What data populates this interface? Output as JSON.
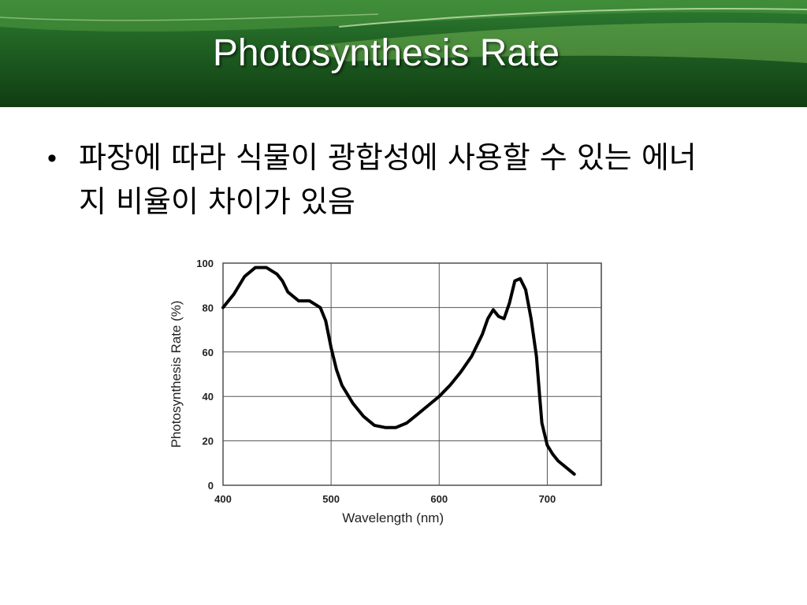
{
  "title": "Photosynthesis Rate",
  "bullet": "파장에 따라 식물이 광합성에 사용할 수 있는 에너지 비율이 차이가 있음",
  "colors": {
    "header_dark": "#0f3d12",
    "header_mid": "#2e7d32",
    "curve": "#000000",
    "grid": "#555555"
  },
  "chart_data": {
    "type": "line",
    "xlabel": "Wavelength (nm)",
    "ylabel": "Photosynthesis Rate (%)",
    "xlim": [
      400,
      750
    ],
    "ylim": [
      0,
      100
    ],
    "x_ticks": [
      400,
      500,
      600,
      700
    ],
    "y_ticks": [
      0,
      20,
      40,
      60,
      80,
      100
    ],
    "grid": true,
    "series": [
      {
        "x": [
          400,
          410,
          420,
          430,
          440,
          450,
          455,
          460,
          470,
          480,
          490,
          495,
          500,
          505,
          510,
          520,
          530,
          540,
          550,
          560,
          570,
          580,
          590,
          600,
          610,
          620,
          630,
          640,
          645,
          650,
          655,
          660,
          665,
          670,
          675,
          680,
          685,
          690,
          693,
          695,
          700,
          705,
          710,
          720,
          725
        ],
        "y": [
          80,
          86,
          94,
          98,
          98,
          95,
          92,
          87,
          83,
          83,
          80,
          74,
          62,
          52,
          45,
          37,
          31,
          27,
          26,
          26,
          28,
          32,
          36,
          40,
          45,
          51,
          58,
          68,
          75,
          79,
          76,
          75,
          82,
          92,
          93,
          88,
          75,
          58,
          40,
          28,
          18,
          14,
          11,
          7,
          5
        ]
      }
    ]
  }
}
